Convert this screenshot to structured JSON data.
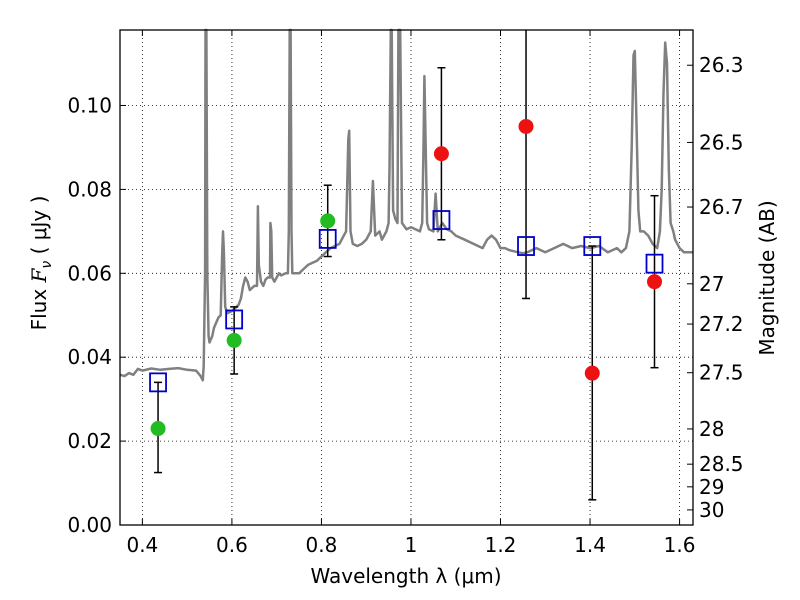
{
  "chart_data": {
    "type": "scatter",
    "xlabel": "Wavelength  λ (μm)",
    "ylabel": "Flux  F_ν ( μJy )",
    "ylabel_parts": {
      "pre": "Flux  ",
      "sym": "F",
      "sub": "ν",
      "post": " ( μJy )"
    },
    "y2label": "Magnitude (AB)",
    "xlim": [
      0.35,
      1.63
    ],
    "ylim": [
      0.0,
      0.118
    ],
    "x_ticks": [
      0.4,
      0.6,
      0.8,
      1.0,
      1.2,
      1.4,
      1.6
    ],
    "x_tick_labels": [
      "0.4",
      "0.6",
      "0.8",
      "1",
      "1.2",
      "1.4",
      "1.6"
    ],
    "y_ticks": [
      0.0,
      0.02,
      0.04,
      0.06,
      0.08,
      0.1
    ],
    "y_tick_labels": [
      "0.00",
      "0.02",
      "0.04",
      "0.06",
      "0.08",
      "0.10"
    ],
    "y2_ticks": [
      {
        "label": "26.3",
        "flux": 0.1096
      },
      {
        "label": "26.5",
        "flux": 0.0912
      },
      {
        "label": "26.7",
        "flux": 0.0758
      },
      {
        "label": "27",
        "flux": 0.0575
      },
      {
        "label": "27.2",
        "flux": 0.0479
      },
      {
        "label": "27.5",
        "flux": 0.0363
      },
      {
        "label": "28",
        "flux": 0.0229
      },
      {
        "label": "28.5",
        "flux": 0.0145
      },
      {
        "label": "29",
        "flux": 0.0091
      },
      {
        "label": "30",
        "flux": 0.0036
      }
    ],
    "grid": true,
    "colors": {
      "spectrum": "#808080",
      "model_box": "#0000cc",
      "green_point": "#22bb22",
      "red_point": "#ee1111",
      "errorbar": "#000000"
    },
    "series": [
      {
        "type": "line",
        "points": [
          [
            0.35,
            0.0358
          ],
          [
            0.36,
            0.0355
          ],
          [
            0.37,
            0.0362
          ],
          [
            0.38,
            0.0358
          ],
          [
            0.39,
            0.0372
          ],
          [
            0.4,
            0.0368
          ],
          [
            0.42,
            0.0373
          ],
          [
            0.44,
            0.037
          ],
          [
            0.46,
            0.0372
          ],
          [
            0.48,
            0.0374
          ],
          [
            0.5,
            0.037
          ],
          [
            0.52,
            0.0368
          ],
          [
            0.53,
            0.0355
          ],
          [
            0.535,
            0.0345
          ],
          [
            0.537,
            0.038
          ],
          [
            0.54,
            0.06
          ],
          [
            0.541,
            0.118
          ],
          [
            0.542,
            0.118
          ],
          [
            0.543,
            0.118
          ],
          [
            0.545,
            0.06
          ],
          [
            0.548,
            0.045
          ],
          [
            0.55,
            0.0435
          ],
          [
            0.556,
            0.045
          ],
          [
            0.56,
            0.047
          ],
          [
            0.57,
            0.0495
          ],
          [
            0.575,
            0.05
          ],
          [
            0.578,
            0.064
          ],
          [
            0.58,
            0.07
          ],
          [
            0.582,
            0.065
          ],
          [
            0.585,
            0.052
          ],
          [
            0.59,
            0.0505
          ],
          [
            0.6,
            0.051
          ],
          [
            0.61,
            0.052
          ],
          [
            0.615,
            0.0525
          ],
          [
            0.62,
            0.054
          ],
          [
            0.625,
            0.057
          ],
          [
            0.63,
            0.059
          ],
          [
            0.635,
            0.058
          ],
          [
            0.64,
            0.056
          ],
          [
            0.65,
            0.057
          ],
          [
            0.656,
            0.057
          ],
          [
            0.658,
            0.076
          ],
          [
            0.66,
            0.062
          ],
          [
            0.665,
            0.058
          ],
          [
            0.67,
            0.057
          ],
          [
            0.675,
            0.0585
          ],
          [
            0.68,
            0.059
          ],
          [
            0.685,
            0.059
          ],
          [
            0.686,
            0.072
          ],
          [
            0.688,
            0.07
          ],
          [
            0.69,
            0.059
          ],
          [
            0.695,
            0.058
          ],
          [
            0.7,
            0.059
          ],
          [
            0.705,
            0.06
          ],
          [
            0.71,
            0.0595
          ],
          [
            0.72,
            0.06
          ],
          [
            0.725,
            0.06
          ],
          [
            0.727,
            0.07
          ],
          [
            0.729,
            0.118
          ],
          [
            0.731,
            0.118
          ],
          [
            0.733,
            0.07
          ],
          [
            0.735,
            0.06
          ],
          [
            0.74,
            0.06
          ],
          [
            0.75,
            0.06
          ],
          [
            0.76,
            0.061
          ],
          [
            0.77,
            0.062
          ],
          [
            0.78,
            0.0625
          ],
          [
            0.79,
            0.063
          ],
          [
            0.8,
            0.064
          ],
          [
            0.81,
            0.065
          ],
          [
            0.82,
            0.066
          ],
          [
            0.83,
            0.0665
          ],
          [
            0.84,
            0.067
          ],
          [
            0.85,
            0.069
          ],
          [
            0.855,
            0.07
          ],
          [
            0.86,
            0.092
          ],
          [
            0.862,
            0.094
          ],
          [
            0.865,
            0.07
          ],
          [
            0.87,
            0.067
          ],
          [
            0.88,
            0.0665
          ],
          [
            0.89,
            0.067
          ],
          [
            0.9,
            0.068
          ],
          [
            0.91,
            0.07
          ],
          [
            0.915,
            0.082
          ],
          [
            0.92,
            0.069
          ],
          [
            0.93,
            0.07
          ],
          [
            0.935,
            0.068
          ],
          [
            0.94,
            0.069
          ],
          [
            0.945,
            0.07
          ],
          [
            0.95,
            0.072
          ],
          [
            0.952,
            0.085
          ],
          [
            0.955,
            0.118
          ],
          [
            0.957,
            0.118
          ],
          [
            0.96,
            0.075
          ],
          [
            0.965,
            0.073
          ],
          [
            0.97,
            0.072
          ],
          [
            0.972,
            0.118
          ],
          [
            0.976,
            0.118
          ],
          [
            0.98,
            0.072
          ],
          [
            0.99,
            0.0705
          ],
          [
            1.0,
            0.071
          ],
          [
            1.01,
            0.0705
          ],
          [
            1.02,
            0.07
          ],
          [
            1.025,
            0.072
          ],
          [
            1.028,
            0.09
          ],
          [
            1.03,
            0.107
          ],
          [
            1.033,
            0.09
          ],
          [
            1.036,
            0.072
          ],
          [
            1.04,
            0.0705
          ],
          [
            1.05,
            0.07
          ],
          [
            1.055,
            0.079
          ],
          [
            1.06,
            0.07
          ],
          [
            1.07,
            0.072
          ],
          [
            1.08,
            0.0705
          ],
          [
            1.09,
            0.07
          ],
          [
            1.1,
            0.069
          ],
          [
            1.12,
            0.068
          ],
          [
            1.14,
            0.067
          ],
          [
            1.16,
            0.066
          ],
          [
            1.17,
            0.068
          ],
          [
            1.18,
            0.069
          ],
          [
            1.19,
            0.068
          ],
          [
            1.2,
            0.066
          ],
          [
            1.21,
            0.066
          ],
          [
            1.22,
            0.0655
          ],
          [
            1.24,
            0.065
          ],
          [
            1.25,
            0.0648
          ],
          [
            1.26,
            0.065
          ],
          [
            1.28,
            0.066
          ],
          [
            1.3,
            0.065
          ],
          [
            1.32,
            0.066
          ],
          [
            1.34,
            0.067
          ],
          [
            1.36,
            0.066
          ],
          [
            1.38,
            0.0665
          ],
          [
            1.4,
            0.066
          ],
          [
            1.42,
            0.0665
          ],
          [
            1.44,
            0.065
          ],
          [
            1.46,
            0.066
          ],
          [
            1.47,
            0.065
          ],
          [
            1.48,
            0.066
          ],
          [
            1.488,
            0.07
          ],
          [
            1.493,
            0.09
          ],
          [
            1.497,
            0.112
          ],
          [
            1.5,
            0.113
          ],
          [
            1.503,
            0.1
          ],
          [
            1.508,
            0.075
          ],
          [
            1.512,
            0.07
          ],
          [
            1.52,
            0.07
          ],
          [
            1.53,
            0.069
          ],
          [
            1.54,
            0.067
          ],
          [
            1.55,
            0.066
          ],
          [
            1.556,
            0.07
          ],
          [
            1.56,
            0.08
          ],
          [
            1.564,
            0.103
          ],
          [
            1.568,
            0.115
          ],
          [
            1.572,
            0.11
          ],
          [
            1.576,
            0.085
          ],
          [
            1.58,
            0.072
          ],
          [
            1.586,
            0.07
          ],
          [
            1.59,
            0.068
          ],
          [
            1.6,
            0.066
          ],
          [
            1.61,
            0.065
          ],
          [
            1.62,
            0.065
          ],
          [
            1.63,
            0.065
          ]
        ]
      },
      {
        "type": "model_boxes",
        "points": [
          {
            "x": 0.435,
            "y": 0.034
          },
          {
            "x": 0.605,
            "y": 0.049
          },
          {
            "x": 0.814,
            "y": 0.0682
          },
          {
            "x": 1.068,
            "y": 0.0727
          },
          {
            "x": 1.257,
            "y": 0.0665
          },
          {
            "x": 1.405,
            "y": 0.0665
          },
          {
            "x": 1.544,
            "y": 0.0623
          }
        ]
      },
      {
        "type": "points_green",
        "points": [
          {
            "x": 0.435,
            "y": 0.023,
            "err_low": 0.0125,
            "err_high": 0.034
          },
          {
            "x": 0.605,
            "y": 0.044,
            "err_low": 0.036,
            "err_high": 0.052
          },
          {
            "x": 0.814,
            "y": 0.0725,
            "err_low": 0.064,
            "err_high": 0.081
          }
        ]
      },
      {
        "type": "points_red",
        "points": [
          {
            "x": 1.068,
            "y": 0.0885,
            "err_low": 0.068,
            "err_high": 0.109
          },
          {
            "x": 1.257,
            "y": 0.095,
            "err_low": 0.054,
            "err_high": 0.118
          },
          {
            "x": 1.405,
            "y": 0.0362,
            "err_low": 0.006,
            "err_high": 0.0665
          },
          {
            "x": 1.544,
            "y": 0.058,
            "err_low": 0.0375,
            "err_high": 0.0785
          }
        ]
      }
    ]
  }
}
